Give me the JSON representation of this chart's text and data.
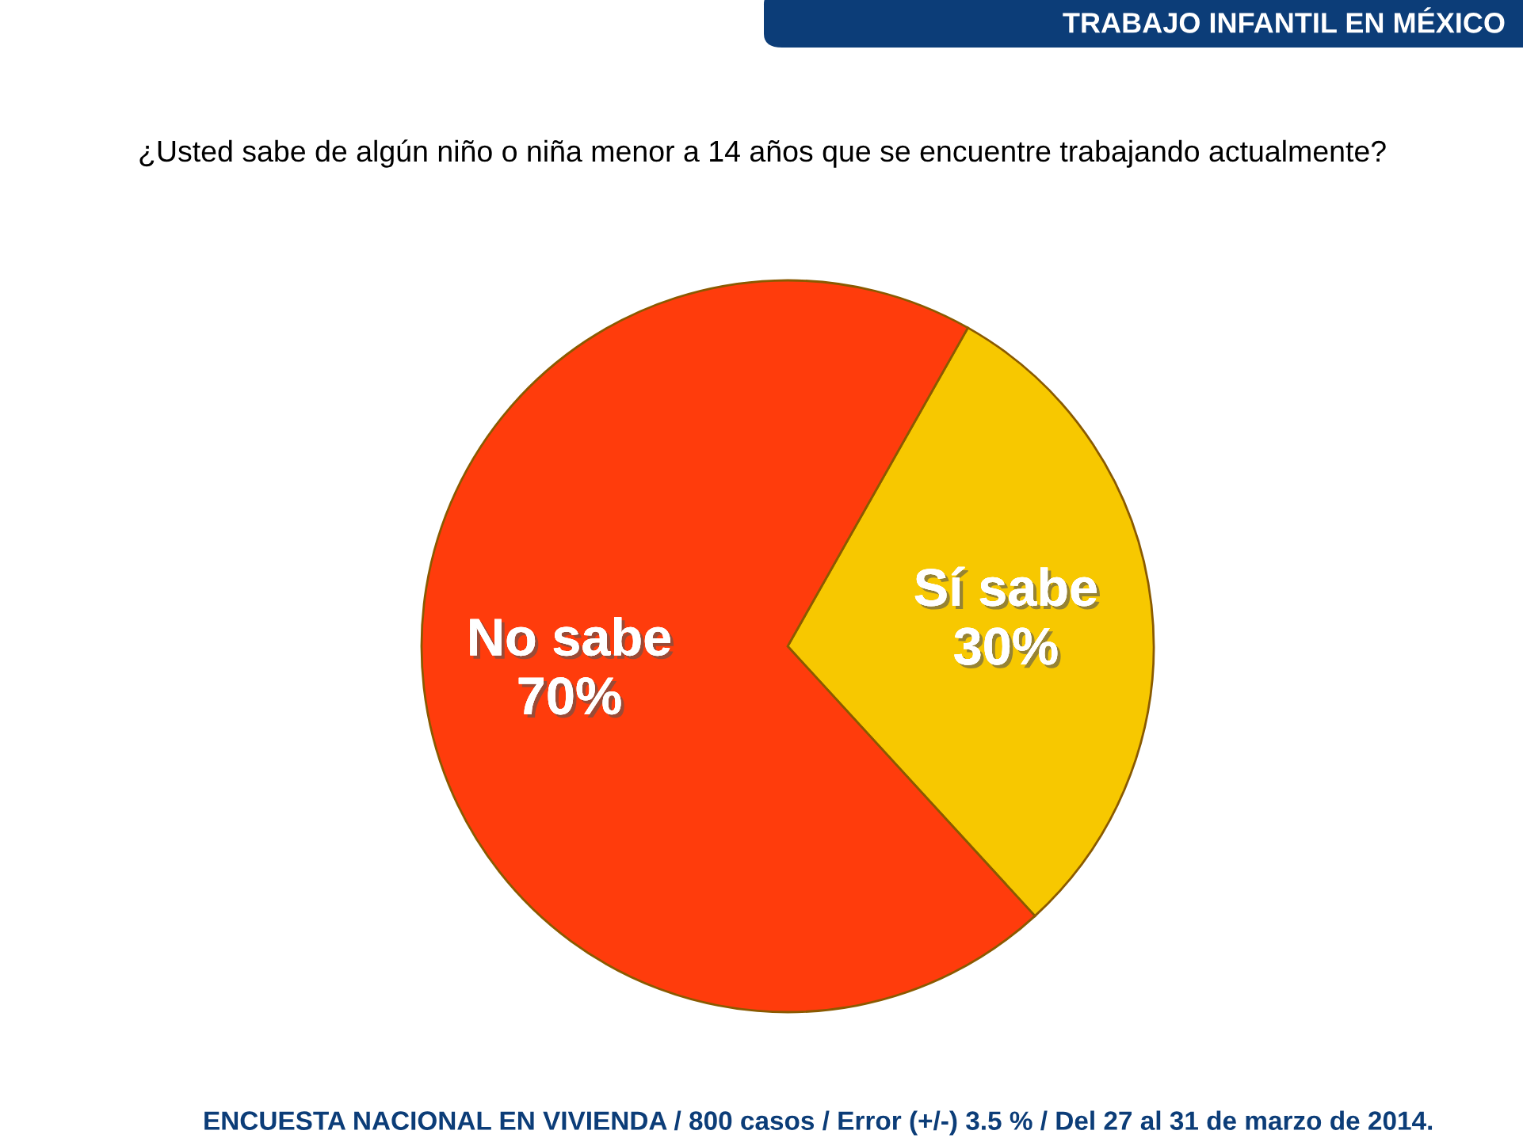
{
  "chart_data": {
    "type": "pie",
    "title": "TRABAJO INFANTIL EN MÉXICO",
    "subtitle": "¿Usted sabe de algún niño o niña menor a 14 años que se encuentre trabajando actualmente?",
    "categories": [
      "Sí sabe",
      "No sabe"
    ],
    "values": [
      30,
      70
    ],
    "value_labels": [
      "30%",
      "70%"
    ],
    "colors": [
      "#f7c800",
      "#ff3c0c"
    ],
    "legend": false,
    "annotations": [
      "ENCUESTA NACIONAL EN VIVIENDA / 800 casos / Error (+/-) 3.5 % / Del 27 al 31 de marzo de 2014."
    ]
  }
}
